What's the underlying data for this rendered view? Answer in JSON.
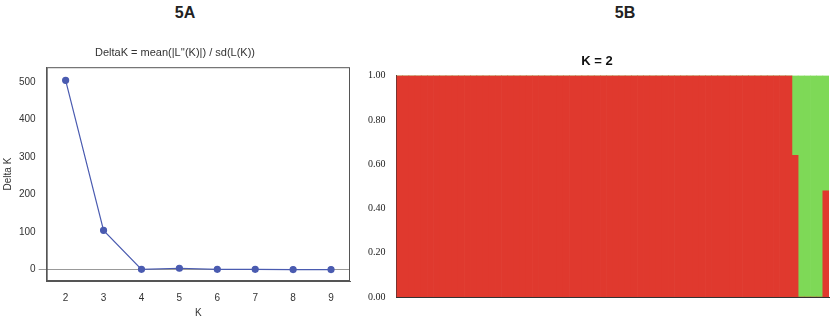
{
  "chart_data": [
    {
      "type": "line",
      "panel": "5A",
      "title": "DeltaK = mean(|L''(K)|) / sd(L(K))",
      "x_label": "K",
      "y_label": "Delta K",
      "x": [
        2,
        3,
        4,
        5,
        6,
        7,
        8,
        9
      ],
      "values": [
        505,
        105,
        1,
        4,
        1,
        1,
        0.5,
        0.5
      ],
      "color": "#4a5bb0",
      "marker": "circle",
      "xlim": [
        1.5,
        9.5
      ],
      "xticks": [
        2,
        3,
        4,
        5,
        6,
        7,
        8,
        9
      ],
      "ylim": [
        -30,
        540
      ],
      "yticks": [
        0,
        100,
        200,
        300,
        400,
        500
      ]
    },
    {
      "type": "bar",
      "panel": "5B",
      "title": "K = 2",
      "stacked": true,
      "tick_labels": "y",
      "categories": [
        null,
        null,
        null,
        null,
        null,
        null,
        null,
        null,
        null,
        null,
        null,
        null,
        null,
        null,
        null,
        null,
        null,
        null,
        null,
        null,
        null,
        null,
        null,
        null,
        null,
        null,
        null,
        null,
        null,
        null,
        null,
        null,
        null,
        null,
        null,
        null,
        null,
        null,
        null,
        null,
        null,
        null,
        null,
        null,
        null,
        null,
        null,
        null,
        null,
        null,
        null,
        null,
        null,
        null,
        null,
        null,
        null,
        null,
        null,
        null,
        null,
        null,
        null,
        null,
        null,
        null,
        null,
        null,
        null,
        null
      ],
      "series": [
        {
          "color": "#e0392e",
          "values": [
            1,
            1,
            1,
            1,
            1,
            1,
            1,
            1,
            1,
            1,
            1,
            1,
            1,
            1,
            1,
            1,
            1,
            1,
            1,
            1,
            1,
            1,
            1,
            1,
            1,
            1,
            1,
            1,
            1,
            1,
            1,
            1,
            1,
            1,
            1,
            1,
            1,
            1,
            1,
            1,
            1,
            1,
            1,
            1,
            1,
            1,
            1,
            1,
            1,
            1,
            1,
            1,
            1,
            1,
            1,
            1,
            1,
            1,
            1,
            1,
            1,
            1,
            1,
            1,
            0.64,
            0,
            0,
            0,
            0,
            0.48
          ]
        },
        {
          "color": "#7ed957",
          "values": [
            0,
            0,
            0,
            0,
            0,
            0,
            0,
            0,
            0,
            0,
            0,
            0,
            0,
            0,
            0,
            0,
            0,
            0,
            0,
            0,
            0,
            0,
            0,
            0,
            0,
            0,
            0,
            0,
            0,
            0,
            0,
            0,
            0,
            0,
            0,
            0,
            0,
            0,
            0,
            0,
            0,
            0,
            0,
            0,
            0,
            0,
            0,
            0,
            0,
            0,
            0,
            0,
            0,
            0,
            0,
            0,
            0,
            0,
            0,
            0,
            0,
            0,
            0,
            0,
            0.36,
            1,
            1,
            1,
            1,
            0.52
          ]
        }
      ],
      "ylim": [
        0,
        1
      ],
      "yticks": [
        {
          "value": 0,
          "label": "0.00"
        },
        {
          "value": 0.2,
          "label": "0.20"
        },
        {
          "value": 0.4,
          "label": "0.40"
        },
        {
          "value": 0.6,
          "label": "0.60"
        },
        {
          "value": 0.8,
          "label": "0.80"
        },
        {
          "value": 1,
          "label": "1.00"
        }
      ]
    }
  ]
}
